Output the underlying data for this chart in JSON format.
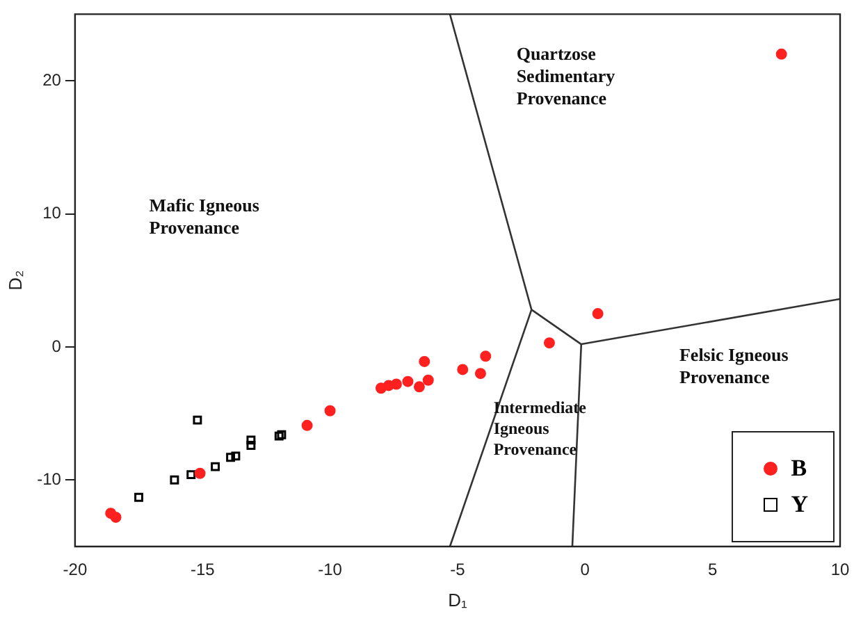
{
  "chart_data": {
    "type": "scatter",
    "xlabel": "D₁",
    "ylabel": "D₂",
    "xlim": [
      -20,
      10
    ],
    "xticks": [
      -20,
      -15,
      -10,
      -5,
      0,
      5,
      10
    ],
    "ylim": [
      -15,
      25
    ],
    "yticks": [
      -10,
      0,
      10,
      20
    ],
    "grid": false,
    "legend": "bottom right",
    "series": [
      {
        "name": "B",
        "color": "#ff2020",
        "marker": "circle",
        "x": [
          7.7,
          0.5,
          -1.4,
          -3.9,
          -4.1,
          -4.8,
          -6.3,
          -6.15,
          -6.5,
          -6.95,
          -7.4,
          -7.7,
          -8.0,
          -10.0,
          -10.9,
          -15.1,
          -18.6,
          -18.4
        ],
        "values": [
          22,
          2.5,
          0.3,
          -0.7,
          -2.0,
          -1.7,
          -1.1,
          -2.5,
          -3.0,
          -2.6,
          -2.8,
          -2.9,
          -3.1,
          -4.8,
          -5.9,
          -9.5,
          -12.5,
          -12.8
        ]
      },
      {
        "name": "Y",
        "color": "#000000",
        "marker": "square",
        "x": [
          -15.2,
          -17.5,
          -16.1,
          -15.45,
          -14.5,
          -13.9,
          -13.7,
          -13.1,
          -13.1,
          -12.0,
          -11.9
        ],
        "values": [
          -5.5,
          -11.3,
          -10.0,
          -9.6,
          -9.0,
          -8.3,
          -8.2,
          -7.4,
          -7.0,
          -6.7,
          -6.6
        ]
      },
      {
        "type": "line",
        "color": "#333333",
        "marker": "none",
        "line_style": "solid",
        "x": [
          -5.3,
          -2.1,
          -0.15,
          10
        ],
        "values": [
          25,
          2.8,
          0.2,
          3.6
        ]
      },
      {
        "type": "line",
        "color": "#333333",
        "marker": "none",
        "line_style": "solid",
        "x": [
          -2.1,
          -5.3
        ],
        "values": [
          2.8,
          -15
        ]
      },
      {
        "type": "line",
        "color": "#333333",
        "marker": "none",
        "line_style": "solid",
        "x": [
          -0.15,
          -0.5
        ],
        "values": [
          0.2,
          -15
        ]
      }
    ],
    "annotations": [
      "Mafic Igneous\nProvenance",
      "Quartzose\nSedimentary\nProvenance",
      "Felsic Igneous\nProvenance",
      "Intermediate\nIgneous\nProvenance"
    ]
  }
}
